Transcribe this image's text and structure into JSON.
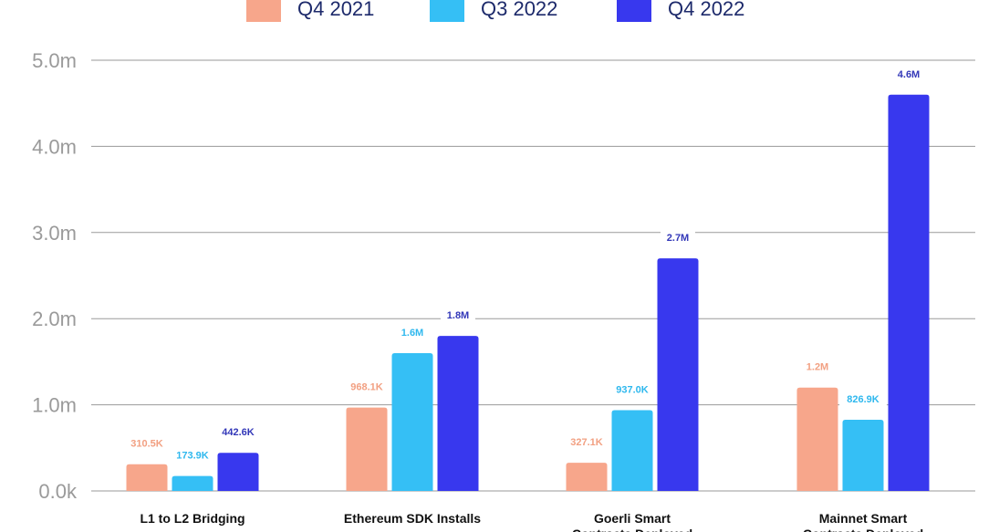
{
  "chart_data": {
    "type": "bar",
    "title": "",
    "xlabel": "",
    "ylabel": "",
    "ylim": [
      0,
      5.0
    ],
    "yticks": [
      "0.0k",
      "1.0m",
      "2.0m",
      "3.0m",
      "4.0m",
      "5.0m"
    ],
    "grid": true,
    "legend_position": "top",
    "categories": [
      [
        "L1 to L2 Bridging"
      ],
      [
        "Ethereum SDK Installs"
      ],
      [
        "Goerli Smart",
        "Contracts Deployed"
      ],
      [
        "Mainnet Smart",
        "Contracts Deployed"
      ]
    ],
    "series": [
      {
        "name": "Q4 2021",
        "color": "#f7a68b",
        "label_color": "#f2a082",
        "values": [
          0.3105,
          0.9681,
          0.3271,
          1.2
        ],
        "labels": [
          "310.5K",
          "968.1K",
          "327.1K",
          "1.2M"
        ]
      },
      {
        "name": "Q3 2022",
        "color": "#35bff5",
        "label_color": "#2fb8ee",
        "values": [
          0.1739,
          1.6,
          0.937,
          0.8269
        ],
        "labels": [
          "173.9K",
          "1.6M",
          "937.0K",
          "826.9K"
        ]
      },
      {
        "name": "Q4 2022",
        "color": "#3838ee",
        "label_color": "#3237b8",
        "values": [
          0.4426,
          1.8,
          2.7,
          4.6
        ],
        "labels": [
          "442.6K",
          "1.8M",
          "2.7M",
          "4.6M"
        ]
      }
    ]
  }
}
